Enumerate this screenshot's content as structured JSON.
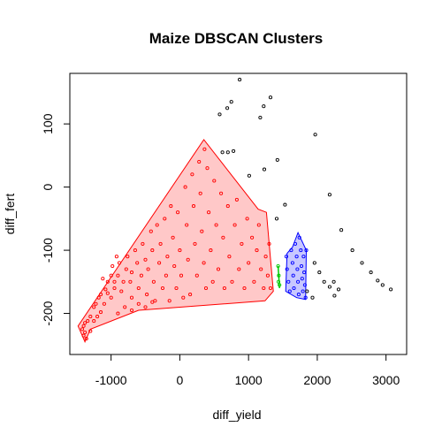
{
  "chart_data": {
    "type": "scatter",
    "title": "Maize DBSCAN Clusters",
    "xlabel": "diff_yield",
    "ylabel": "diff_fert",
    "xlim": [
      -1600,
      3300
    ],
    "ylim": [
      -265,
      180
    ],
    "x_ticks": [
      -1000,
      0,
      1000,
      2000,
      3000
    ],
    "y_ticks": [
      -200,
      -100,
      0,
      100
    ],
    "x_tick_labels": [
      "-1000",
      "0",
      "1000",
      "2000",
      "3000"
    ],
    "y_tick_labels": [
      "-200",
      "-100",
      "0",
      "100"
    ],
    "grid": false,
    "legend": "none",
    "colors": {
      "cluster1": "#FF0000",
      "cluster1_fill": "#FFC8C8",
      "cluster2": "#0000FF",
      "cluster2_fill": "#C8C8FF",
      "cluster3": "#00C800",
      "noise": "#000000"
    },
    "hulls": [
      {
        "cluster": "cluster1",
        "points": [
          [
            -1380,
            -245
          ],
          [
            -1300,
            -225
          ],
          [
            -600,
            -195
          ],
          [
            1240,
            -180
          ],
          [
            1360,
            -165
          ],
          [
            1260,
            -40
          ],
          [
            1140,
            -35
          ],
          [
            350,
            75
          ],
          [
            -1480,
            -220
          ]
        ]
      },
      {
        "cluster": "cluster2",
        "points": [
          [
            1540,
            -165
          ],
          [
            1560,
            -105
          ],
          [
            1640,
            -95
          ],
          [
            1720,
            -72
          ],
          [
            1840,
            -100
          ],
          [
            1830,
            -178
          ],
          [
            1700,
            -175
          ]
        ]
      },
      {
        "cluster": "cluster3",
        "points": [
          [
            1430,
            -125
          ],
          [
            1450,
            -160
          ]
        ]
      }
    ],
    "series": [
      {
        "cluster": "noise",
        "points": [
          [
            870,
            170
          ],
          [
            1320,
            142
          ],
          [
            750,
            135
          ],
          [
            690,
            125
          ],
          [
            580,
            115
          ],
          [
            1170,
            110
          ],
          [
            1220,
            128
          ],
          [
            1970,
            83
          ],
          [
            620,
            55
          ],
          [
            700,
            55
          ],
          [
            780,
            57
          ],
          [
            1420,
            43
          ],
          [
            1230,
            28
          ],
          [
            1010,
            18
          ],
          [
            1530,
            -28
          ],
          [
            2180,
            -12
          ],
          [
            1410,
            -50
          ],
          [
            2350,
            -68
          ],
          [
            2510,
            -100
          ],
          [
            2650,
            -120
          ],
          [
            2780,
            -135
          ],
          [
            2950,
            -155
          ],
          [
            2880,
            -148
          ],
          [
            3070,
            -162
          ],
          [
            2030,
            -135
          ],
          [
            2100,
            -150
          ],
          [
            1960,
            -120
          ],
          [
            2180,
            -158
          ],
          [
            2250,
            -172
          ],
          [
            2310,
            -162
          ],
          [
            2240,
            -150
          ],
          [
            1930,
            -175
          ],
          [
            1850,
            -165
          ]
        ]
      },
      {
        "cluster": "cluster1",
        "points": [
          [
            -1400,
            -220
          ],
          [
            -1380,
            -230
          ],
          [
            -1360,
            -240
          ],
          [
            -1420,
            -225
          ],
          [
            -1300,
            -228
          ],
          [
            -1380,
            -215
          ],
          [
            -1340,
            -212
          ],
          [
            -1400,
            -235
          ],
          [
            -1250,
            -212
          ],
          [
            -1200,
            -205
          ],
          [
            -1150,
            -198
          ],
          [
            -1220,
            -185
          ],
          [
            -1180,
            -175
          ],
          [
            -1100,
            -185
          ],
          [
            -1080,
            -162
          ],
          [
            -1050,
            -168
          ],
          [
            -1000,
            -175
          ],
          [
            -950,
            -160
          ],
          [
            -1120,
            -145
          ],
          [
            -1000,
            -140
          ],
          [
            -950,
            -150
          ],
          [
            -900,
            -140
          ],
          [
            -880,
            -120
          ],
          [
            -850,
            -165
          ],
          [
            -820,
            -150
          ],
          [
            -780,
            -130
          ],
          [
            -760,
            -110
          ],
          [
            -720,
            -150
          ],
          [
            -700,
            -135
          ],
          [
            -700,
            -175
          ],
          [
            -650,
            -100
          ],
          [
            -620,
            -120
          ],
          [
            -600,
            -160
          ],
          [
            -560,
            -140
          ],
          [
            -540,
            -90
          ],
          [
            -500,
            -115
          ],
          [
            -480,
            -170
          ],
          [
            -460,
            -130
          ],
          [
            -420,
            -70
          ],
          [
            -400,
            -100
          ],
          [
            -380,
            -150
          ],
          [
            -360,
            -180
          ],
          [
            -330,
            -60
          ],
          [
            -300,
            -120
          ],
          [
            -280,
            -90
          ],
          [
            -250,
            -160
          ],
          [
            -220,
            -50
          ],
          [
            -200,
            -140
          ],
          [
            -180,
            -110
          ],
          [
            -150,
            -180
          ],
          [
            -130,
            -30
          ],
          [
            -100,
            -80
          ],
          [
            -80,
            -125
          ],
          [
            -50,
            -160
          ],
          [
            -30,
            -40
          ],
          [
            0,
            -100
          ],
          [
            20,
            -140
          ],
          [
            50,
            -175
          ],
          [
            80,
            0
          ],
          [
            100,
            -60
          ],
          [
            120,
            -115
          ],
          [
            150,
            -170
          ],
          [
            180,
            20
          ],
          [
            200,
            -30
          ],
          [
            220,
            -90
          ],
          [
            250,
            -140
          ],
          [
            280,
            40
          ],
          [
            300,
            -10
          ],
          [
            320,
            -70
          ],
          [
            350,
            -120
          ],
          [
            360,
            60
          ],
          [
            380,
            -160
          ],
          [
            400,
            30
          ],
          [
            420,
            -40
          ],
          [
            450,
            -100
          ],
          [
            480,
            -150
          ],
          [
            500,
            10
          ],
          [
            530,
            -60
          ],
          [
            560,
            -130
          ],
          [
            600,
            -10
          ],
          [
            630,
            -80
          ],
          [
            650,
            -160
          ],
          [
            700,
            -30
          ],
          [
            720,
            -110
          ],
          [
            760,
            -150
          ],
          [
            800,
            -60
          ],
          [
            830,
            -20
          ],
          [
            860,
            -130
          ],
          [
            900,
            -90
          ],
          [
            940,
            -160
          ],
          [
            980,
            -50
          ],
          [
            1000,
            -120
          ],
          [
            1050,
            -80
          ],
          [
            1080,
            -150
          ],
          [
            1120,
            -100
          ],
          [
            1150,
            -60
          ],
          [
            1180,
            -130
          ],
          [
            1220,
            -160
          ],
          [
            1250,
            -110
          ],
          [
            1280,
            -140
          ],
          [
            1300,
            -90
          ],
          [
            1320,
            -160
          ],
          [
            -900,
            -200
          ],
          [
            -800,
            -190
          ],
          [
            -700,
            -195
          ],
          [
            -600,
            -185
          ],
          [
            -500,
            -190
          ],
          [
            -400,
            -182
          ],
          [
            -1300,
            -205
          ],
          [
            -1250,
            -190
          ],
          [
            -1150,
            -170
          ],
          [
            -1050,
            -150
          ],
          [
            -980,
            -125
          ],
          [
            -920,
            -110
          ]
        ]
      },
      {
        "cluster": "cluster2",
        "points": [
          [
            1550,
            -110
          ],
          [
            1560,
            -130
          ],
          [
            1580,
            -150
          ],
          [
            1600,
            -165
          ],
          [
            1620,
            -100
          ],
          [
            1640,
            -120
          ],
          [
            1650,
            -140
          ],
          [
            1660,
            -160
          ],
          [
            1680,
            -90
          ],
          [
            1700,
            -110
          ],
          [
            1710,
            -130
          ],
          [
            1720,
            -150
          ],
          [
            1730,
            -170
          ],
          [
            1740,
            -80
          ],
          [
            1760,
            -100
          ],
          [
            1770,
            -125
          ],
          [
            1780,
            -145
          ],
          [
            1790,
            -165
          ],
          [
            1800,
            -110
          ],
          [
            1810,
            -135
          ],
          [
            1820,
            -155
          ],
          [
            1830,
            -175
          ],
          [
            1840,
            -100
          ]
        ]
      },
      {
        "cluster": "cluster3",
        "points": [
          [
            1430,
            -125
          ],
          [
            1440,
            -140
          ],
          [
            1450,
            -155
          ],
          [
            1435,
            -150
          ]
        ]
      }
    ]
  }
}
